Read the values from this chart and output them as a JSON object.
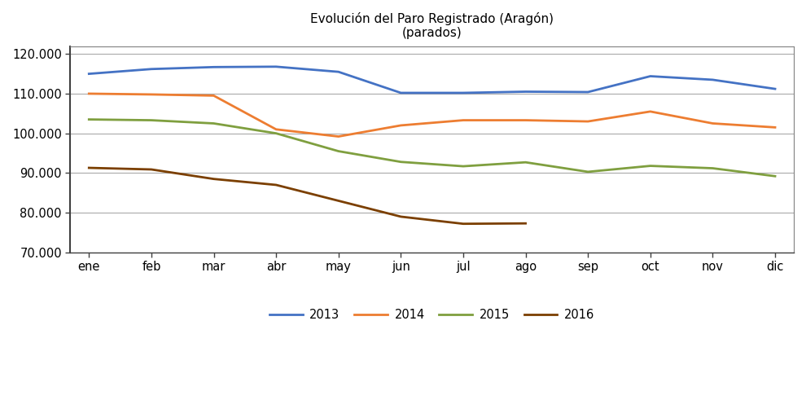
{
  "title_line1": "Evolución del Paro Registrado (Aragón)",
  "title_line2": "(parados)",
  "months": [
    "ene",
    "feb",
    "mar",
    "abr",
    "may",
    "jun",
    "jul",
    "ago",
    "sep",
    "oct",
    "nov",
    "dic"
  ],
  "series": {
    "2013": [
      115000,
      116200,
      116700,
      116800,
      115500,
      110200,
      110200,
      110500,
      110400,
      114400,
      113500,
      111200
    ],
    "2014": [
      110000,
      109800,
      109500,
      101000,
      99200,
      102000,
      103300,
      103300,
      103000,
      105500,
      102500,
      101500
    ],
    "2015": [
      103500,
      103300,
      102500,
      100000,
      95500,
      92800,
      91700,
      92700,
      90300,
      91800,
      91200,
      89200
    ],
    "2016": [
      91300,
      90900,
      88500,
      87000,
      83000,
      79000,
      77200,
      77300,
      null,
      null,
      null,
      null
    ]
  },
  "colors": {
    "2013": "#4472C4",
    "2014": "#ED7D31",
    "2015": "#7F9F3F",
    "2016": "#7B3F00"
  },
  "ylim": [
    70000,
    122000
  ],
  "yticks": [
    70000,
    80000,
    90000,
    100000,
    110000,
    120000
  ],
  "ytick_labels": [
    "70.000",
    "80.000",
    "90.000",
    "100.000",
    "110.000",
    "120.000"
  ],
  "legend_order": [
    "2013",
    "2014",
    "2015",
    "2016"
  ],
  "background_color": "#ffffff",
  "grid_color": "#A9A9A9",
  "line_width": 2.0
}
